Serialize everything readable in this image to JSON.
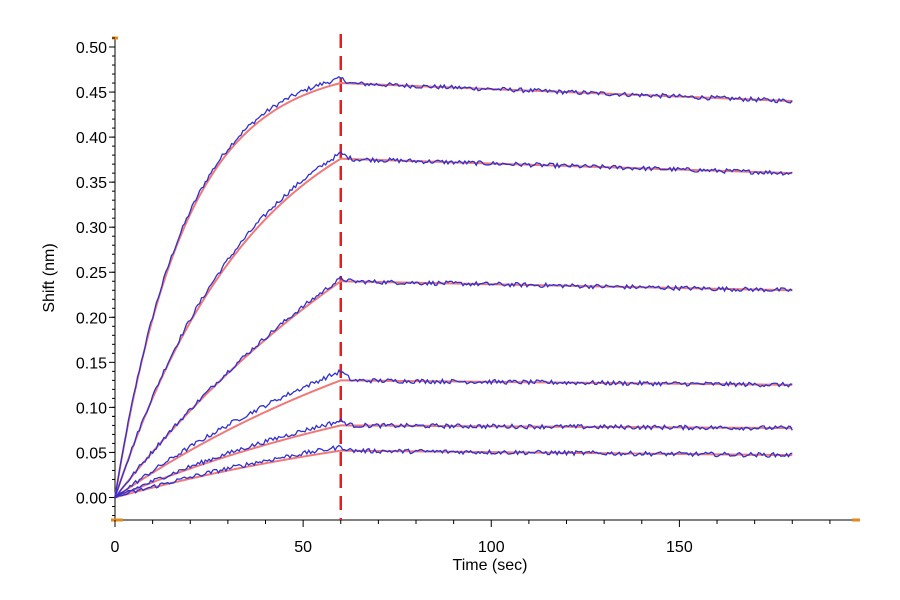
{
  "chart_data": {
    "type": "line",
    "title": "",
    "xlabel": "Time (sec)",
    "ylabel": "Shift (nm)",
    "xlim": [
      0,
      198
    ],
    "ylim": [
      -0.025,
      0.51
    ],
    "x_ticks": [
      0,
      50,
      100,
      150
    ],
    "x_tick_labels": [
      "0",
      "50",
      "100",
      "150"
    ],
    "y_ticks": [
      0.0,
      0.05,
      0.1,
      0.15,
      0.2,
      0.25,
      0.3,
      0.35,
      0.4,
      0.45,
      0.5
    ],
    "y_tick_labels": [
      "0.00",
      "0.05",
      "0.10",
      "0.15",
      "0.20",
      "0.25",
      "0.30",
      "0.35",
      "0.40",
      "0.45",
      "0.50"
    ],
    "association_end_marker": 60,
    "x_end": 180,
    "grid": false,
    "legend": "none",
    "colors": {
      "measured": "#3030d0",
      "fit": "#f07878",
      "marker": "#e02020",
      "axis_tick": "#e08a1e"
    },
    "series": [
      {
        "peak": 0.465,
        "fit_peak": 0.46,
        "end": 0.44,
        "curvature": "strong"
      },
      {
        "peak": 0.382,
        "fit_peak": 0.376,
        "end": 0.36,
        "curvature": "medium"
      },
      {
        "peak": 0.243,
        "fit_peak": 0.24,
        "end": 0.23,
        "curvature": "slight"
      },
      {
        "peak": 0.14,
        "fit_peak": 0.13,
        "end": 0.125,
        "curvature": "slight"
      },
      {
        "peak": 0.085,
        "fit_peak": 0.08,
        "end": 0.077,
        "curvature": "slight"
      },
      {
        "peak": 0.056,
        "fit_peak": 0.052,
        "end": 0.047,
        "curvature": "slight"
      }
    ]
  }
}
